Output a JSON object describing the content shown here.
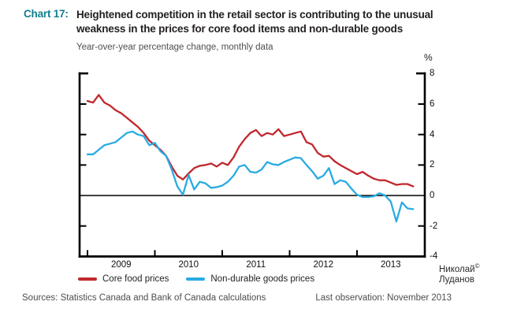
{
  "header": {
    "chart_label": "Chart 17:",
    "title_line1": "Heightened competition in the retail sector is contributing to the unusual",
    "title_line2": "weakness in the prices for core food items and non-durable goods",
    "subtitle": "Year-over-year percentage change, monthly data"
  },
  "colors": {
    "accent_teal": "#117e8d",
    "core_food_red": "#c1272d",
    "non_durable_blue": "#29abe2",
    "axis_black": "#000000"
  },
  "chart_data": {
    "type": "line",
    "frequency": "monthly",
    "x_start": "2009-01",
    "x_end": "2013-11",
    "ylabel": "%",
    "ylim": [
      -4,
      8
    ],
    "y_ticks": [
      8,
      6,
      4,
      2,
      0,
      -2,
      -4
    ],
    "y_minor_tick_values": [
      6,
      4,
      2,
      -2
    ],
    "x_years": [
      "2009",
      "2010",
      "2011",
      "2012",
      "2013"
    ],
    "zero_line": true,
    "grid": false,
    "legend_position": "bottom-left",
    "series": [
      {
        "name": "Core food prices",
        "color": "#c1272d",
        "values": [
          6.2,
          6.1,
          6.6,
          6.1,
          5.9,
          5.6,
          5.4,
          5.1,
          4.8,
          4.5,
          4.1,
          3.6,
          3.3,
          3.0,
          2.6,
          1.9,
          1.3,
          1.05,
          1.45,
          1.8,
          1.95,
          2.0,
          2.1,
          1.9,
          2.15,
          2.0,
          2.5,
          3.2,
          3.7,
          4.1,
          4.3,
          3.9,
          4.1,
          4.0,
          4.35,
          3.9,
          4.0,
          4.1,
          4.2,
          3.5,
          3.35,
          2.8,
          2.55,
          2.6,
          2.25,
          2.0,
          1.8,
          1.6,
          1.4,
          1.55,
          1.3,
          1.1,
          1.0,
          1.0,
          0.85,
          0.7,
          0.75,
          0.75,
          0.6
        ]
      },
      {
        "name": "Non-durable goods prices",
        "color": "#29abe2",
        "values": [
          2.7,
          2.7,
          3.0,
          3.3,
          3.4,
          3.5,
          3.8,
          4.1,
          4.2,
          4.0,
          3.9,
          3.3,
          3.45,
          2.9,
          2.6,
          1.7,
          0.6,
          0.05,
          1.35,
          0.4,
          0.9,
          0.8,
          0.5,
          0.55,
          0.65,
          0.9,
          1.3,
          1.9,
          2.0,
          1.55,
          1.5,
          1.7,
          2.2,
          2.05,
          2.0,
          2.2,
          2.35,
          2.5,
          2.45,
          2.0,
          1.6,
          1.1,
          1.3,
          1.8,
          0.75,
          1.0,
          0.9,
          0.45,
          0.05,
          -0.1,
          -0.1,
          -0.05,
          0.15,
          0.0,
          -0.4,
          -1.7,
          -0.45,
          -0.85,
          -0.9
        ]
      }
    ]
  },
  "footer": {
    "sources": "Sources: Statistics Canada and Bank of Canada calculations",
    "last_observation": "Last observation: November 2013"
  },
  "watermark": {
    "line1": "Николай",
    "copyright": "©",
    "line2": "Луданов"
  }
}
